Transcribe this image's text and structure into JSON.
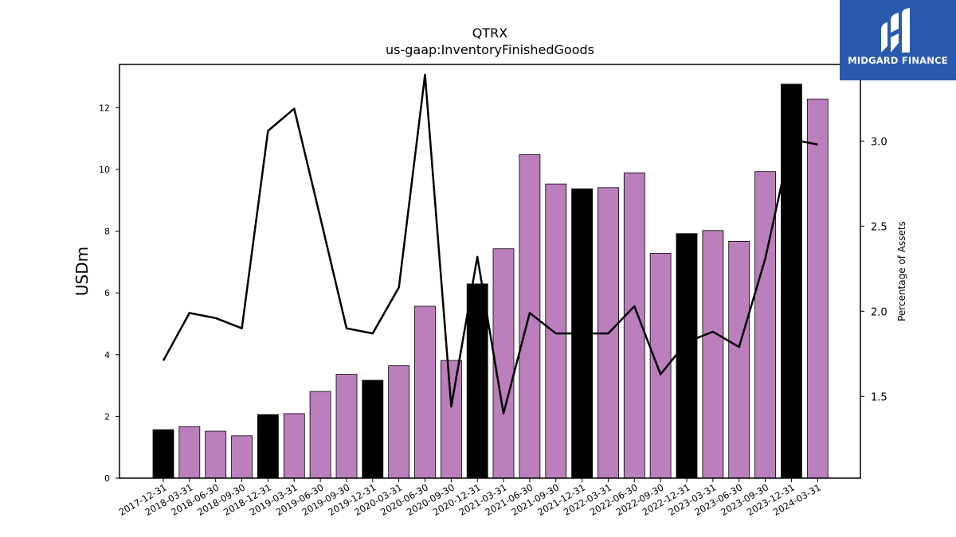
{
  "chart_data": {
    "type": "bar",
    "title": "QTRX",
    "subtitle": "us-gaap:InventoryFinishedGoods",
    "ylabel": "USDm",
    "y2label": "Percentage of Assets",
    "ylim": [
      0,
      13.4
    ],
    "y2lim": [
      1.02,
      3.45
    ],
    "yticks": [
      0,
      2,
      4,
      6,
      8,
      10,
      12
    ],
    "y2ticks": [
      "1.5",
      "2.0",
      "2.5",
      "3.0"
    ],
    "categories": [
      "2017-12-31",
      "2018-03-31",
      "2018-06-30",
      "2018-09-30",
      "2018-12-31",
      "2019-03-31",
      "2019-06-30",
      "2019-09-30",
      "2019-12-31",
      "2020-03-31",
      "2020-06-30",
      "2020-09-30",
      "2020-12-31",
      "2021-03-31",
      "2021-06-30",
      "2021-09-30",
      "2021-12-31",
      "2022-03-31",
      "2022-06-30",
      "2022-09-30",
      "2022-12-31",
      "2023-03-31",
      "2023-06-30",
      "2023-09-30",
      "2023-12-31",
      "2024-03-31"
    ],
    "series": [
      {
        "type": "bar",
        "values": [
          1.57,
          1.67,
          1.52,
          1.37,
          2.06,
          2.09,
          2.81,
          3.36,
          3.17,
          3.64,
          5.57,
          3.81,
          6.29,
          7.43,
          10.48,
          9.53,
          9.37,
          9.41,
          9.89,
          7.28,
          7.92,
          8.02,
          7.67,
          9.93,
          12.76,
          12.28
        ],
        "highlight": [
          true,
          false,
          false,
          false,
          true,
          false,
          false,
          false,
          true,
          false,
          false,
          false,
          true,
          false,
          false,
          false,
          true,
          false,
          false,
          false,
          true,
          false,
          false,
          false,
          true,
          false
        ]
      },
      {
        "type": "line",
        "axis": "right",
        "values": [
          1.71,
          1.99,
          1.96,
          1.9,
          3.06,
          3.19,
          2.55,
          1.9,
          1.87,
          2.14,
          3.39,
          1.44,
          2.32,
          1.4,
          1.99,
          1.87,
          1.87,
          1.87,
          2.03,
          1.63,
          1.82,
          1.88,
          1.79,
          2.31,
          3.01,
          2.98
        ]
      }
    ],
    "colors": {
      "bar": "#bb7fbd",
      "bar_highlight": "#000000",
      "line": "#000000"
    },
    "grid": false,
    "legend": "none"
  },
  "logo": {
    "text": "MIDGARD FINANCE",
    "color": "#2a5aad"
  }
}
